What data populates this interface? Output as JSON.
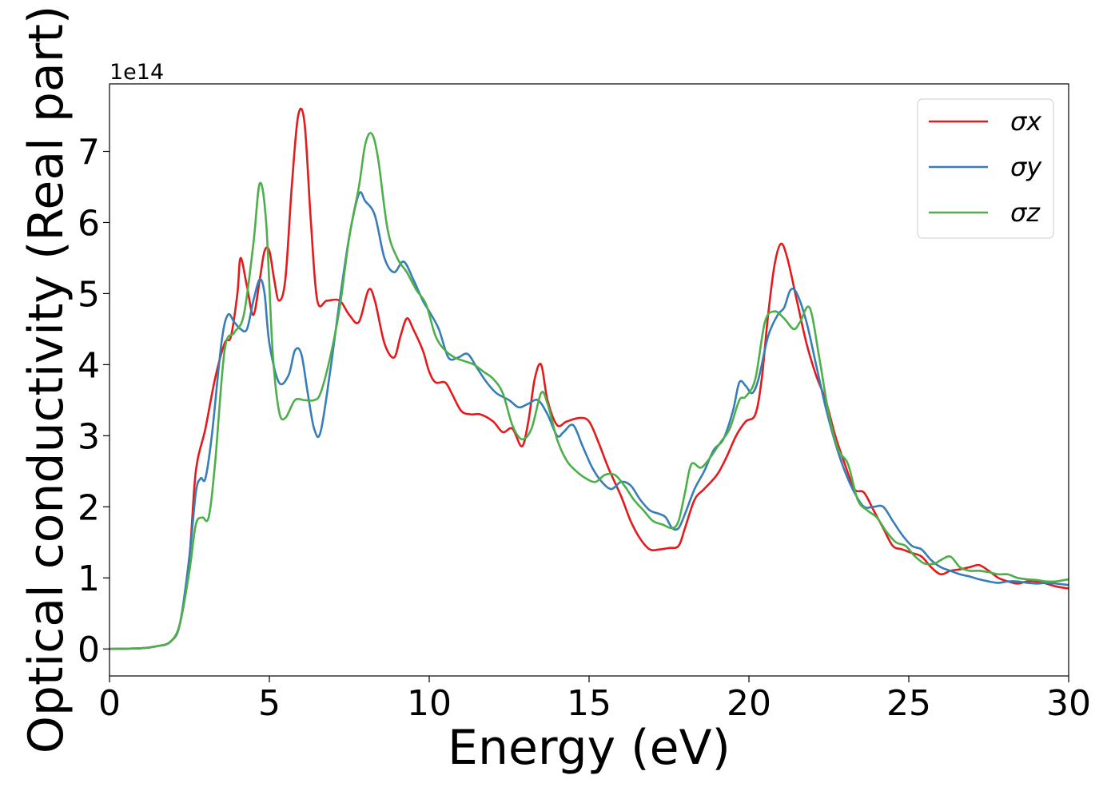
{
  "chart_data": {
    "type": "line",
    "title": "",
    "xlabel": "Energy (eV)",
    "ylabel": "Optical conductivity (Real part)",
    "y_offset_label": "1e14",
    "xlim": [
      0,
      30
    ],
    "ylim": [
      -0.38,
      7.95
    ],
    "x_ticks": [
      0,
      5,
      10,
      15,
      20,
      25,
      30
    ],
    "y_ticks": [
      0,
      1,
      2,
      3,
      4,
      5,
      6,
      7
    ],
    "grid": false,
    "legend_position": "top-right",
    "series": [
      {
        "name": "σx",
        "color": "#e41a1c",
        "points": [
          [
            0,
            0
          ],
          [
            1.0,
            0.01
          ],
          [
            1.5,
            0.04
          ],
          [
            1.9,
            0.1
          ],
          [
            2.2,
            0.35
          ],
          [
            2.5,
            1.3
          ],
          [
            2.7,
            2.5
          ],
          [
            3.0,
            3.1
          ],
          [
            3.3,
            3.8
          ],
          [
            3.6,
            4.3
          ],
          [
            3.8,
            4.4
          ],
          [
            4.0,
            5.0
          ],
          [
            4.1,
            5.5
          ],
          [
            4.3,
            5.1
          ],
          [
            4.5,
            4.7
          ],
          [
            4.7,
            5.2
          ],
          [
            4.85,
            5.6
          ],
          [
            5.0,
            5.6
          ],
          [
            5.15,
            5.2
          ],
          [
            5.3,
            4.9
          ],
          [
            5.5,
            5.2
          ],
          [
            5.7,
            6.5
          ],
          [
            5.9,
            7.5
          ],
          [
            6.1,
            7.4
          ],
          [
            6.3,
            6.0
          ],
          [
            6.5,
            4.9
          ],
          [
            6.8,
            4.9
          ],
          [
            7.2,
            4.9
          ],
          [
            7.5,
            4.7
          ],
          [
            7.8,
            4.6
          ],
          [
            8.1,
            5.05
          ],
          [
            8.3,
            4.9
          ],
          [
            8.6,
            4.3
          ],
          [
            8.9,
            4.1
          ],
          [
            9.1,
            4.4
          ],
          [
            9.3,
            4.65
          ],
          [
            9.5,
            4.5
          ],
          [
            9.8,
            4.2
          ],
          [
            10.0,
            3.9
          ],
          [
            10.2,
            3.75
          ],
          [
            10.5,
            3.75
          ],
          [
            10.7,
            3.6
          ],
          [
            11.0,
            3.35
          ],
          [
            11.3,
            3.3
          ],
          [
            11.6,
            3.3
          ],
          [
            12.0,
            3.2
          ],
          [
            12.3,
            3.05
          ],
          [
            12.6,
            3.1
          ],
          [
            12.9,
            2.85
          ],
          [
            13.1,
            3.2
          ],
          [
            13.3,
            3.8
          ],
          [
            13.5,
            4.0
          ],
          [
            13.7,
            3.5
          ],
          [
            14.0,
            3.15
          ],
          [
            14.3,
            3.2
          ],
          [
            14.7,
            3.25
          ],
          [
            15.0,
            3.2
          ],
          [
            15.3,
            2.9
          ],
          [
            15.6,
            2.55
          ],
          [
            16.0,
            2.15
          ],
          [
            16.3,
            1.8
          ],
          [
            16.6,
            1.55
          ],
          [
            16.9,
            1.4
          ],
          [
            17.2,
            1.4
          ],
          [
            17.5,
            1.42
          ],
          [
            17.8,
            1.45
          ],
          [
            18.0,
            1.7
          ],
          [
            18.3,
            2.1
          ],
          [
            18.6,
            2.25
          ],
          [
            19.0,
            2.45
          ],
          [
            19.3,
            2.7
          ],
          [
            19.6,
            3.0
          ],
          [
            19.9,
            3.2
          ],
          [
            20.2,
            3.3
          ],
          [
            20.4,
            3.8
          ],
          [
            20.6,
            4.7
          ],
          [
            20.8,
            5.4
          ],
          [
            21.0,
            5.7
          ],
          [
            21.2,
            5.5
          ],
          [
            21.5,
            4.9
          ],
          [
            21.8,
            4.3
          ],
          [
            22.1,
            3.85
          ],
          [
            22.4,
            3.5
          ],
          [
            22.7,
            3.0
          ],
          [
            23.0,
            2.6
          ],
          [
            23.3,
            2.25
          ],
          [
            23.6,
            2.2
          ],
          [
            23.9,
            1.95
          ],
          [
            24.2,
            1.7
          ],
          [
            24.5,
            1.45
          ],
          [
            24.8,
            1.4
          ],
          [
            25.1,
            1.35
          ],
          [
            25.4,
            1.3
          ],
          [
            25.7,
            1.15
          ],
          [
            26.0,
            1.05
          ],
          [
            26.3,
            1.1
          ],
          [
            26.6,
            1.12
          ],
          [
            26.9,
            1.15
          ],
          [
            27.2,
            1.18
          ],
          [
            27.5,
            1.1
          ],
          [
            27.8,
            1.0
          ],
          [
            28.1,
            0.95
          ],
          [
            28.4,
            0.92
          ],
          [
            28.7,
            0.95
          ],
          [
            29.0,
            0.95
          ],
          [
            29.3,
            0.92
          ],
          [
            29.6,
            0.88
          ],
          [
            30.0,
            0.85
          ]
        ]
      },
      {
        "name": "σy",
        "color": "#377eb8",
        "points": [
          [
            0,
            0
          ],
          [
            1.0,
            0.01
          ],
          [
            1.5,
            0.04
          ],
          [
            1.9,
            0.1
          ],
          [
            2.2,
            0.35
          ],
          [
            2.5,
            1.3
          ],
          [
            2.7,
            2.2
          ],
          [
            2.85,
            2.4
          ],
          [
            3.0,
            2.4
          ],
          [
            3.2,
            3.0
          ],
          [
            3.5,
            4.3
          ],
          [
            3.7,
            4.7
          ],
          [
            3.9,
            4.6
          ],
          [
            4.1,
            4.5
          ],
          [
            4.3,
            4.5
          ],
          [
            4.5,
            4.9
          ],
          [
            4.7,
            5.2
          ],
          [
            4.85,
            5.0
          ],
          [
            5.0,
            4.3
          ],
          [
            5.3,
            3.75
          ],
          [
            5.6,
            3.85
          ],
          [
            5.8,
            4.2
          ],
          [
            6.0,
            4.15
          ],
          [
            6.2,
            3.6
          ],
          [
            6.4,
            3.1
          ],
          [
            6.6,
            3.05
          ],
          [
            6.9,
            3.9
          ],
          [
            7.2,
            4.9
          ],
          [
            7.5,
            5.8
          ],
          [
            7.8,
            6.4
          ],
          [
            8.0,
            6.3
          ],
          [
            8.3,
            6.1
          ],
          [
            8.6,
            5.5
          ],
          [
            8.9,
            5.3
          ],
          [
            9.2,
            5.45
          ],
          [
            9.5,
            5.2
          ],
          [
            9.8,
            4.9
          ],
          [
            10.0,
            4.75
          ],
          [
            10.3,
            4.5
          ],
          [
            10.6,
            4.1
          ],
          [
            10.9,
            4.1
          ],
          [
            11.2,
            4.15
          ],
          [
            11.5,
            3.95
          ],
          [
            11.8,
            3.75
          ],
          [
            12.1,
            3.6
          ],
          [
            12.5,
            3.5
          ],
          [
            12.8,
            3.4
          ],
          [
            13.1,
            3.45
          ],
          [
            13.4,
            3.5
          ],
          [
            13.7,
            3.3
          ],
          [
            14.0,
            3.0
          ],
          [
            14.2,
            3.05
          ],
          [
            14.5,
            3.15
          ],
          [
            14.8,
            2.85
          ],
          [
            15.1,
            2.55
          ],
          [
            15.4,
            2.35
          ],
          [
            15.7,
            2.25
          ],
          [
            16.0,
            2.35
          ],
          [
            16.3,
            2.3
          ],
          [
            16.6,
            2.1
          ],
          [
            16.9,
            1.95
          ],
          [
            17.2,
            1.9
          ],
          [
            17.4,
            1.85
          ],
          [
            17.6,
            1.7
          ],
          [
            17.8,
            1.7
          ],
          [
            18.0,
            1.9
          ],
          [
            18.3,
            2.25
          ],
          [
            18.6,
            2.5
          ],
          [
            18.9,
            2.8
          ],
          [
            19.2,
            2.95
          ],
          [
            19.5,
            3.35
          ],
          [
            19.7,
            3.75
          ],
          [
            19.9,
            3.7
          ],
          [
            20.1,
            3.6
          ],
          [
            20.3,
            3.8
          ],
          [
            20.6,
            4.4
          ],
          [
            20.9,
            4.7
          ],
          [
            21.1,
            4.8
          ],
          [
            21.3,
            5.05
          ],
          [
            21.5,
            5.0
          ],
          [
            21.8,
            4.6
          ],
          [
            22.1,
            4.0
          ],
          [
            22.4,
            3.4
          ],
          [
            22.7,
            2.9
          ],
          [
            23.0,
            2.5
          ],
          [
            23.3,
            2.2
          ],
          [
            23.6,
            2.0
          ],
          [
            23.9,
            2.0
          ],
          [
            24.2,
            2.0
          ],
          [
            24.5,
            1.8
          ],
          [
            24.8,
            1.6
          ],
          [
            25.1,
            1.45
          ],
          [
            25.4,
            1.4
          ],
          [
            25.7,
            1.25
          ],
          [
            26.0,
            1.15
          ],
          [
            26.3,
            1.1
          ],
          [
            26.6,
            1.05
          ],
          [
            26.9,
            1.02
          ],
          [
            27.2,
            0.98
          ],
          [
            27.5,
            0.95
          ],
          [
            27.8,
            0.93
          ],
          [
            28.1,
            0.95
          ],
          [
            28.4,
            0.95
          ],
          [
            28.7,
            0.93
          ],
          [
            29.0,
            0.92
          ],
          [
            29.3,
            0.93
          ],
          [
            29.6,
            0.92
          ],
          [
            30.0,
            0.9
          ]
        ]
      },
      {
        "name": "σz",
        "color": "#4daf4a",
        "points": [
          [
            0,
            0
          ],
          [
            1.0,
            0.01
          ],
          [
            1.5,
            0.04
          ],
          [
            1.9,
            0.1
          ],
          [
            2.2,
            0.35
          ],
          [
            2.5,
            1.1
          ],
          [
            2.7,
            1.75
          ],
          [
            2.9,
            1.85
          ],
          [
            3.1,
            1.85
          ],
          [
            3.3,
            2.6
          ],
          [
            3.6,
            4.2
          ],
          [
            3.9,
            4.45
          ],
          [
            4.2,
            4.7
          ],
          [
            4.5,
            5.7
          ],
          [
            4.7,
            6.55
          ],
          [
            4.9,
            6.0
          ],
          [
            5.1,
            4.2
          ],
          [
            5.3,
            3.35
          ],
          [
            5.5,
            3.25
          ],
          [
            5.8,
            3.5
          ],
          [
            6.1,
            3.5
          ],
          [
            6.4,
            3.5
          ],
          [
            6.6,
            3.6
          ],
          [
            6.9,
            4.1
          ],
          [
            7.2,
            4.8
          ],
          [
            7.5,
            5.8
          ],
          [
            7.8,
            6.5
          ],
          [
            8.0,
            7.1
          ],
          [
            8.2,
            7.25
          ],
          [
            8.4,
            6.9
          ],
          [
            8.7,
            5.9
          ],
          [
            9.0,
            5.5
          ],
          [
            9.3,
            5.3
          ],
          [
            9.6,
            5.05
          ],
          [
            9.9,
            4.85
          ],
          [
            10.2,
            4.4
          ],
          [
            10.5,
            4.2
          ],
          [
            10.8,
            4.1
          ],
          [
            11.1,
            4.05
          ],
          [
            11.4,
            4.0
          ],
          [
            11.7,
            3.9
          ],
          [
            12.0,
            3.8
          ],
          [
            12.3,
            3.6
          ],
          [
            12.6,
            3.15
          ],
          [
            12.9,
            2.95
          ],
          [
            13.2,
            3.1
          ],
          [
            13.5,
            3.6
          ],
          [
            13.7,
            3.45
          ],
          [
            14.0,
            2.95
          ],
          [
            14.3,
            2.65
          ],
          [
            14.6,
            2.5
          ],
          [
            14.9,
            2.4
          ],
          [
            15.2,
            2.35
          ],
          [
            15.5,
            2.45
          ],
          [
            15.8,
            2.45
          ],
          [
            16.1,
            2.3
          ],
          [
            16.4,
            2.1
          ],
          [
            16.7,
            1.95
          ],
          [
            17.0,
            1.8
          ],
          [
            17.3,
            1.75
          ],
          [
            17.6,
            1.7
          ],
          [
            17.8,
            1.8
          ],
          [
            18.0,
            2.2
          ],
          [
            18.2,
            2.6
          ],
          [
            18.5,
            2.55
          ],
          [
            18.8,
            2.7
          ],
          [
            19.1,
            2.9
          ],
          [
            19.4,
            3.1
          ],
          [
            19.7,
            3.5
          ],
          [
            19.9,
            3.55
          ],
          [
            20.2,
            3.8
          ],
          [
            20.5,
            4.6
          ],
          [
            20.8,
            4.75
          ],
          [
            21.1,
            4.65
          ],
          [
            21.4,
            4.5
          ],
          [
            21.6,
            4.6
          ],
          [
            21.9,
            4.8
          ],
          [
            22.2,
            4.1
          ],
          [
            22.5,
            3.3
          ],
          [
            22.8,
            2.8
          ],
          [
            23.1,
            2.6
          ],
          [
            23.4,
            2.1
          ],
          [
            23.7,
            1.95
          ],
          [
            24.0,
            1.85
          ],
          [
            24.3,
            1.65
          ],
          [
            24.6,
            1.5
          ],
          [
            24.9,
            1.45
          ],
          [
            25.2,
            1.3
          ],
          [
            25.5,
            1.2
          ],
          [
            25.8,
            1.2
          ],
          [
            26.0,
            1.25
          ],
          [
            26.3,
            1.3
          ],
          [
            26.6,
            1.15
          ],
          [
            26.9,
            1.1
          ],
          [
            27.2,
            1.1
          ],
          [
            27.5,
            1.08
          ],
          [
            27.8,
            1.05
          ],
          [
            28.1,
            1.05
          ],
          [
            28.4,
            1.0
          ],
          [
            28.7,
            0.98
          ],
          [
            29.0,
            0.97
          ],
          [
            29.3,
            0.95
          ],
          [
            29.6,
            0.95
          ],
          [
            30.0,
            0.98
          ]
        ]
      }
    ]
  }
}
